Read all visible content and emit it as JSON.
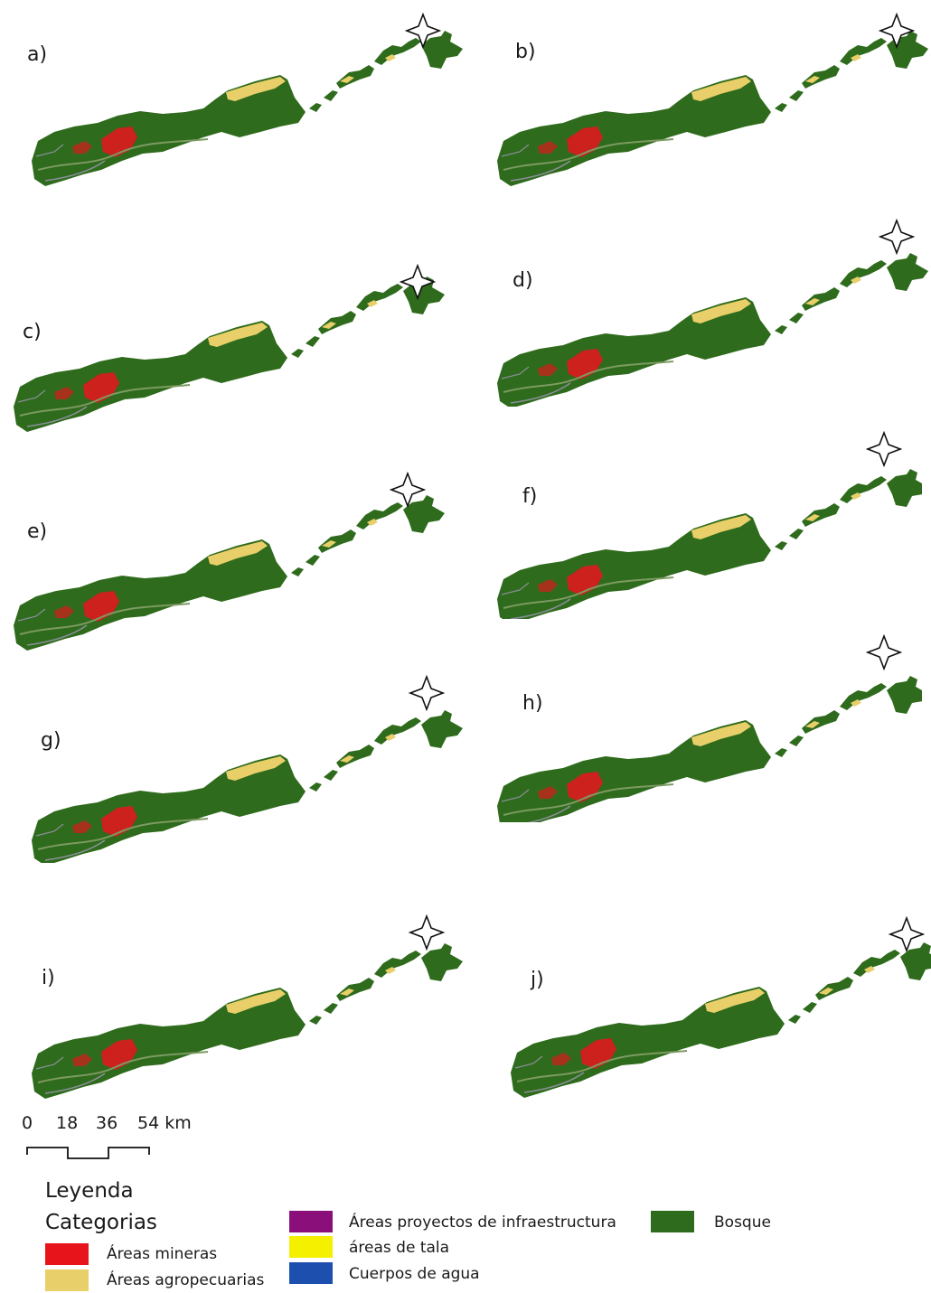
{
  "panels": [
    {
      "label": "a)"
    },
    {
      "label": "b)"
    },
    {
      "label": "c)"
    },
    {
      "label": "d)"
    },
    {
      "label": "e)"
    },
    {
      "label": "f)"
    },
    {
      "label": "g)"
    },
    {
      "label": "h)"
    },
    {
      "label": "i)"
    },
    {
      "label": "j)"
    }
  ],
  "north_arrow": "north-arrow-icon",
  "scale_bar": {
    "ticks": [
      "0",
      "18",
      "36",
      "54 km"
    ]
  },
  "legend": {
    "title": "Leyenda",
    "subtitle": "Categorias",
    "items": [
      {
        "label": "Áreas mineras",
        "color": "#e8141c"
      },
      {
        "label": "Áreas agropecuarias",
        "color": "#e9cf6a"
      },
      {
        "label": "Áreas proyectos de infraestructura",
        "color": "#8b0f7a"
      },
      {
        "label": "áreas de tala",
        "color": "#f5f000"
      },
      {
        "label": "Cuerpos de agua",
        "color": "#1d4fae"
      },
      {
        "label": "Bosque",
        "color": "#2f6b1c"
      }
    ]
  }
}
